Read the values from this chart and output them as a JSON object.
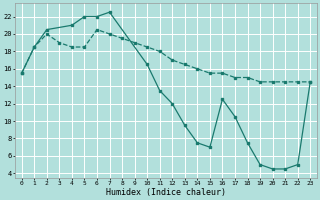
{
  "xlabel": "Humidex (Indice chaleur)",
  "bg_color": "#b2e0dc",
  "grid_color": "#ffffff",
  "line_color": "#1a7a6e",
  "xlim": [
    -0.5,
    23.5
  ],
  "ylim": [
    3.5,
    23.5
  ],
  "yticks": [
    4,
    6,
    8,
    10,
    12,
    14,
    16,
    18,
    20,
    22
  ],
  "xticks": [
    0,
    1,
    2,
    3,
    4,
    5,
    6,
    7,
    8,
    9,
    10,
    11,
    12,
    13,
    14,
    15,
    16,
    17,
    18,
    19,
    20,
    21,
    22,
    23
  ],
  "line1_x": [
    0,
    1,
    2,
    3,
    4,
    5,
    6,
    7,
    8,
    9,
    10,
    11,
    12,
    13,
    14,
    15,
    16,
    17,
    18,
    19,
    20,
    21,
    22,
    23
  ],
  "line1_y": [
    15.5,
    18.5,
    20,
    19,
    18.5,
    18.5,
    20.5,
    20,
    19.5,
    19,
    18.5,
    18,
    17,
    16.5,
    16,
    15.5,
    15.5,
    15,
    15,
    14.5,
    14.5,
    14.5,
    14.5,
    14.5
  ],
  "line2_x": [
    0,
    1,
    2,
    4,
    5,
    6,
    7,
    10,
    11,
    12,
    13,
    14,
    15,
    16,
    17,
    18,
    19,
    20,
    21,
    22,
    23
  ],
  "line2_y": [
    15.5,
    18.5,
    20.5,
    21,
    22,
    22,
    22.5,
    16.5,
    13.5,
    12,
    9.5,
    7.5,
    7,
    12.5,
    10.5,
    7.5,
    5,
    4.5,
    4.5,
    5,
    14.5
  ]
}
